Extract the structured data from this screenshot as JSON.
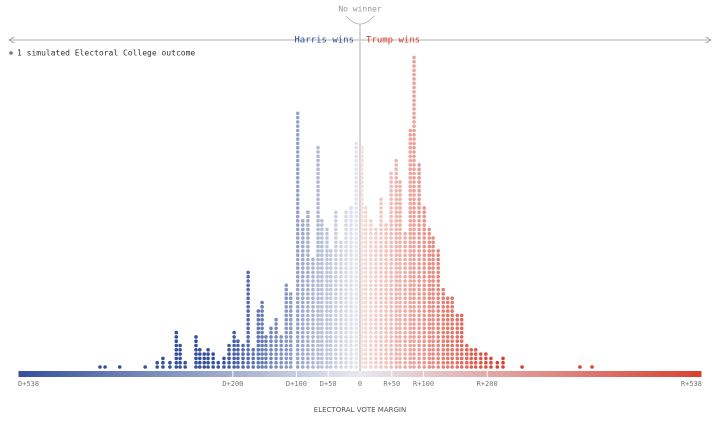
{
  "chart_data": {
    "type": "dot-histogram",
    "annotations": {
      "no_winner": "No winner",
      "left": "Harris wins",
      "right": "Trump wins",
      "legend": "1 simulated Electoral College outcome"
    },
    "xlabel": "ELECTORAL VOTE MARGIN",
    "colors": [
      "#33509a",
      "#d8402f"
    ],
    "xlim": [
      -538,
      538
    ],
    "xticks": [
      {
        "value": -538,
        "label": "D+538"
      },
      {
        "value": -200,
        "label": "D+200"
      },
      {
        "value": -100,
        "label": "D+100"
      },
      {
        "value": -50,
        "label": "D+50"
      },
      0,
      {
        "value": 50,
        "label": "R+50"
      },
      {
        "value": 100,
        "label": "R+100"
      },
      {
        "value": 200,
        "label": "R+200"
      },
      {
        "value": 538,
        "label": "R+538"
      }
    ],
    "x": [
      -409,
      -401,
      -378,
      -338,
      -319,
      -310,
      -299,
      -289,
      -283,
      -275,
      -258,
      -252,
      -245,
      -239,
      -231,
      -223,
      -214,
      -206,
      -198,
      -192,
      -184,
      -176,
      -168,
      -160,
      -154,
      -148,
      -140,
      -132,
      -124,
      -116,
      -109,
      -98,
      -90,
      -82,
      -74,
      -66,
      -60,
      -52,
      -46,
      -38,
      -30,
      -22,
      -14,
      -6,
      3,
      9,
      17,
      25,
      33,
      41,
      49,
      57,
      63,
      71,
      79,
      85,
      93,
      101,
      109,
      115,
      123,
      131,
      138,
      145,
      153,
      160,
      168,
      175,
      182,
      190,
      198,
      206,
      216,
      225,
      255,
      346,
      365
    ],
    "values": [
      1,
      1,
      1,
      1,
      2,
      3,
      2,
      9,
      6,
      2,
      8,
      5,
      4,
      5,
      4,
      2,
      3,
      6,
      9,
      7,
      6,
      23,
      5,
      14,
      16,
      8,
      10,
      12,
      8,
      20,
      18,
      60,
      35,
      37,
      26,
      52,
      35,
      33,
      28,
      37,
      30,
      37,
      38,
      53,
      52,
      38,
      35,
      33,
      40,
      34,
      46,
      49,
      44,
      32,
      56,
      73,
      48,
      38,
      33,
      31,
      28,
      19,
      17,
      17,
      13,
      13,
      6,
      5,
      5,
      4,
      4,
      3,
      2,
      3,
      1,
      1,
      1
    ]
  }
}
